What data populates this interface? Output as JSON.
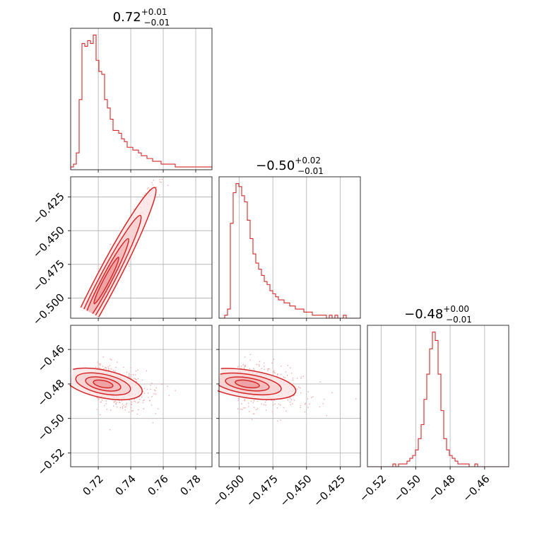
{
  "colors": {
    "series": "#d62728",
    "fill": "#f6cfcf",
    "grid": "#b0b0b0",
    "scatter": "#f4a7a7"
  },
  "chart_data": {
    "type": "corner",
    "grid": true,
    "parameters": [
      {
        "title_value": "0.72",
        "title_plus": "+0.01",
        "title_minus": "−0.01",
        "range": [
          0.703,
          0.79
        ],
        "ticks": [
          0.72,
          0.74,
          0.76,
          0.78
        ],
        "tick_labels": [
          "0.72",
          "0.74",
          "0.76",
          "0.78"
        ],
        "histogram": {
          "edges_start": 0.703,
          "bin_width": 0.00174,
          "counts": [
            1,
            2,
            6,
            25,
            45,
            44,
            46,
            45,
            48,
            39,
            35,
            34,
            25,
            22,
            18,
            14,
            14,
            13,
            11,
            10,
            8,
            8,
            7,
            7,
            6,
            5,
            5,
            4,
            4,
            3,
            3,
            3,
            2,
            2,
            2,
            2,
            2,
            1,
            1,
            1,
            1,
            1,
            1,
            1,
            1,
            1,
            1,
            1,
            1,
            1
          ]
        }
      },
      {
        "title_value": "−0.50",
        "title_plus": "+0.02",
        "title_minus": "−0.01",
        "range": [
          -0.515,
          -0.41
        ],
        "ticks": [
          -0.5,
          -0.475,
          -0.45,
          -0.425
        ],
        "tick_labels": [
          "−0.500",
          "−0.475",
          "−0.450",
          "−0.425"
        ],
        "histogram": {
          "edges_start": -0.515,
          "bin_width": 0.0021,
          "counts": [
            0,
            0,
            1,
            3,
            31,
            41,
            44,
            43,
            40,
            38,
            32,
            26,
            21,
            18,
            16,
            14,
            12,
            11,
            9,
            8,
            7,
            6,
            6,
            5,
            5,
            4,
            4,
            3,
            3,
            3,
            2,
            2,
            2,
            1,
            1,
            1,
            1,
            1,
            0,
            1,
            0,
            1,
            0,
            0,
            1,
            0,
            0,
            0,
            0,
            0
          ]
        }
      },
      {
        "title_value": "−0.48",
        "title_plus": "+0.00",
        "title_minus": "−0.01",
        "range": [
          -0.528,
          -0.446
        ],
        "ticks": [
          -0.52,
          -0.5,
          -0.48,
          -0.46
        ],
        "tick_labels": [
          "−0.52",
          "−0.50",
          "−0.48",
          "−0.46"
        ],
        "histogram": {
          "edges_start": -0.528,
          "bin_width": 0.00164,
          "counts": [
            0,
            0,
            0,
            0,
            0,
            0,
            0,
            0,
            0,
            1,
            0,
            1,
            1,
            1,
            2,
            3,
            4,
            6,
            10,
            15,
            24,
            33,
            42,
            48,
            45,
            33,
            20,
            10,
            6,
            4,
            3,
            2,
            1,
            1,
            1,
            1,
            0,
            0,
            1,
            0,
            0,
            0,
            0,
            0,
            0,
            0,
            0,
            0,
            0,
            0
          ]
        }
      }
    ],
    "correlations": {
      "1-0": {
        "slope": 2.3,
        "x_center": 0.725,
        "y_center": -0.487,
        "spread_along": 0.015,
        "spread_across": 0.004
      },
      "2-0": {
        "slope": -0.2,
        "x_center": 0.723,
        "y_center": -0.48,
        "spread_along": 0.012,
        "spread_across": 0.004
      },
      "2-1": {
        "slope": -0.12,
        "x_center": -0.494,
        "y_center": -0.48,
        "spread_along": 0.018,
        "spread_across": 0.004
      }
    }
  }
}
